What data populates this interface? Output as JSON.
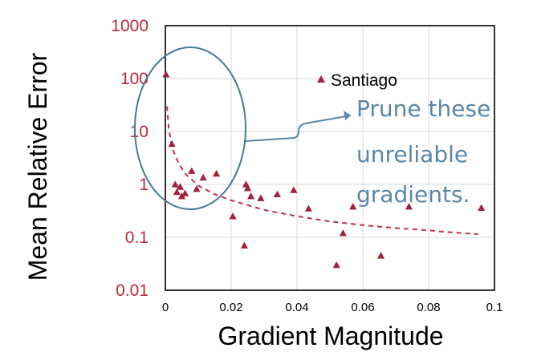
{
  "chart_data": {
    "type": "scatter",
    "xlabel": "Gradient Magnitude",
    "ylabel": "Mean Relative Error",
    "xlim": [
      0,
      0.1
    ],
    "ylim": [
      0.01,
      1000
    ],
    "yscale": "log",
    "x_ticks": [
      0,
      0.02,
      0.04,
      0.06,
      0.08,
      0.1
    ],
    "x_tick_labels": [
      "0",
      "0.02",
      "0.04",
      "0.06",
      "0.08",
      "0.1"
    ],
    "y_ticks": [
      0.01,
      0.1,
      1,
      10,
      100,
      1000
    ],
    "y_tick_labels": [
      "0.01",
      "0.1",
      "1",
      "10",
      "100",
      "1000"
    ],
    "grid": true,
    "legend_position": "top-right",
    "series": [
      {
        "name": "Santiago",
        "marker": "triangle",
        "color": "#a0213a",
        "points": [
          [
            0.0002,
            120
          ],
          [
            0.002,
            5.8
          ],
          [
            0.003,
            1.0
          ],
          [
            0.0035,
            0.72
          ],
          [
            0.0045,
            0.9
          ],
          [
            0.005,
            0.6
          ],
          [
            0.006,
            0.68
          ],
          [
            0.008,
            1.8
          ],
          [
            0.0095,
            0.82
          ],
          [
            0.0115,
            1.35
          ],
          [
            0.0155,
            1.6
          ],
          [
            0.0205,
            0.25
          ],
          [
            0.024,
            0.07
          ],
          [
            0.0245,
            1.0
          ],
          [
            0.025,
            0.85
          ],
          [
            0.026,
            0.6
          ],
          [
            0.029,
            0.55
          ],
          [
            0.034,
            0.65
          ],
          [
            0.039,
            0.78
          ],
          [
            0.0435,
            0.35
          ],
          [
            0.052,
            0.03
          ],
          [
            0.054,
            0.12
          ],
          [
            0.057,
            0.38
          ],
          [
            0.0655,
            0.045
          ],
          [
            0.074,
            0.38
          ],
          [
            0.096,
            0.36
          ]
        ]
      }
    ],
    "trendline": {
      "style": "dashed",
      "color": "#b8324a",
      "points": [
        [
          0.0005,
          30
        ],
        [
          0.001,
          12
        ],
        [
          0.002,
          5
        ],
        [
          0.004,
          2.5
        ],
        [
          0.006,
          1.6
        ],
        [
          0.01,
          0.95
        ],
        [
          0.015,
          0.65
        ],
        [
          0.02,
          0.5
        ],
        [
          0.03,
          0.33
        ],
        [
          0.04,
          0.25
        ],
        [
          0.05,
          0.2
        ],
        [
          0.06,
          0.17
        ],
        [
          0.07,
          0.15
        ],
        [
          0.08,
          0.135
        ],
        [
          0.09,
          0.12
        ],
        [
          0.095,
          0.115
        ]
      ]
    },
    "annotation": {
      "lines": [
        "Prune these",
        "unreliable",
        "gradients."
      ],
      "color": "#5a87a8",
      "ellipse_color": "#4a7a90",
      "target": "points near x = 0 with high error"
    }
  },
  "colors": {
    "axis_tick_text": "#b52b3b",
    "grid": "#d9d9d9",
    "frame": "#000000"
  }
}
